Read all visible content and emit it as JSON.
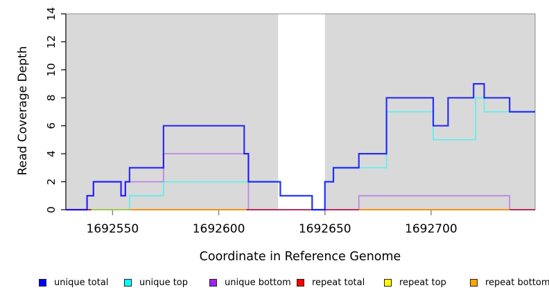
{
  "chart_data": {
    "type": "line",
    "subtype": "step-coverage-plot",
    "xlabel": "Coordinate in Reference Genome",
    "ylabel": "Read Coverage Depth",
    "xlim": [
      1692528,
      1692749
    ],
    "ylim": [
      0,
      14
    ],
    "x_ticks": [
      1692550,
      1692600,
      1692650,
      1692700
    ],
    "y_ticks": [
      0,
      2,
      4,
      6,
      8,
      10,
      12,
      14
    ],
    "grid": false,
    "background_regions": {
      "description": "shaded repeat regions",
      "color": "#d9d9d9",
      "ranges": [
        [
          1692528,
          1692628
        ],
        [
          1692650,
          1692749
        ]
      ]
    },
    "series": [
      {
        "name": "unique bottom",
        "color": "#A020F0",
        "opacity": 0.45,
        "stroke_width": 1.8,
        "segments": [
          [
            [
              1692528,
              0
            ],
            [
              1692538,
              1
            ],
            [
              1692541,
              2
            ],
            [
              1692554,
              1
            ],
            [
              1692556,
              2
            ],
            [
              1692574,
              4
            ],
            [
              1692614,
              0
            ],
            [
              1692666,
              1
            ],
            [
              1692737,
              0
            ],
            [
              1692749,
              0
            ]
          ]
        ]
      },
      {
        "name": "repeat total",
        "color": "#FF0000",
        "opacity": 0.5,
        "stroke_width": 1.8,
        "segments": [
          [
            [
              1692528,
              0
            ],
            [
              1692749,
              0
            ]
          ]
        ]
      },
      {
        "name": "unique top",
        "color": "#00FFFF",
        "opacity": 0.55,
        "stroke_width": 1.8,
        "segments": [
          [
            [
              1692540,
              0
            ],
            [
              1692558,
              1
            ],
            [
              1692574,
              2
            ],
            [
              1692629,
              1
            ],
            [
              1692644,
              0
            ],
            [
              1692650,
              2
            ],
            [
              1692654,
              3
            ],
            [
              1692679,
              7
            ],
            [
              1692701,
              5
            ],
            [
              1692721,
              8
            ],
            [
              1692725,
              7
            ],
            [
              1692749,
              7
            ]
          ]
        ]
      },
      {
        "name": "repeat top",
        "color": "#FFFF00",
        "opacity": 0.5,
        "stroke_width": 1.8,
        "segments": [
          [
            [
              1692540,
              0
            ],
            [
              1692558,
              0
            ]
          ]
        ]
      },
      {
        "name": "repeat bottom",
        "color": "#FFA500",
        "opacity": 0.9,
        "stroke_width": 1.8,
        "segments": [
          [
            [
              1692558,
              0
            ],
            [
              1692613,
              0
            ]
          ],
          [
            [
              1692666,
              0
            ],
            [
              1692737,
              0
            ]
          ]
        ]
      },
      {
        "name": "unique total",
        "color": "#0000FF",
        "opacity": 0.8,
        "stroke_width": 2.2,
        "segments": [
          [
            [
              1692528,
              0
            ],
            [
              1692538,
              1
            ],
            [
              1692541,
              2
            ],
            [
              1692554,
              1
            ],
            [
              1692556,
              2
            ],
            [
              1692558,
              3
            ],
            [
              1692574,
              6
            ],
            [
              1692612,
              4
            ],
            [
              1692614,
              2
            ],
            [
              1692629,
              1
            ],
            [
              1692644,
              0
            ],
            [
              1692650,
              2
            ],
            [
              1692654,
              3
            ],
            [
              1692666,
              4
            ],
            [
              1692679,
              8
            ],
            [
              1692701,
              6
            ],
            [
              1692708,
              8
            ],
            [
              1692720,
              9
            ],
            [
              1692725,
              8
            ],
            [
              1692737,
              7
            ],
            [
              1692749,
              7
            ]
          ]
        ]
      }
    ]
  },
  "legend": {
    "items": [
      {
        "label": "unique total",
        "color": "#0000FF"
      },
      {
        "label": "unique top",
        "color": "#00FFFF"
      },
      {
        "label": "unique bottom",
        "color": "#A020F0"
      },
      {
        "label": "repeat total",
        "color": "#FF0000"
      },
      {
        "label": "repeat top",
        "color": "#FFFF00"
      },
      {
        "label": "repeat bottom",
        "color": "#FFA500"
      }
    ]
  }
}
